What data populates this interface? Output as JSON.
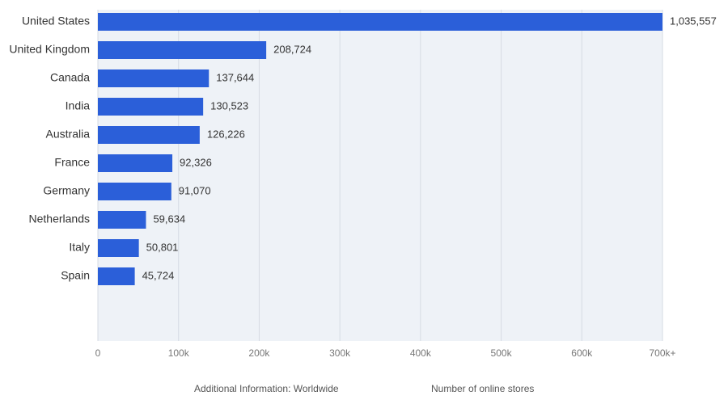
{
  "chart_data": {
    "type": "bar",
    "orientation": "horizontal",
    "categories": [
      "United States",
      "United Kingdom",
      "Canada",
      "India",
      "Australia",
      "France",
      "Germany",
      "Netherlands",
      "Italy",
      "Spain"
    ],
    "values": [
      1035557,
      208724,
      137644,
      130523,
      126226,
      92326,
      91070,
      59634,
      50801,
      45724
    ],
    "value_labels": [
      "1,035,557",
      "208,724",
      "137,644",
      "130,523",
      "126,226",
      "92,326",
      "91,070",
      "59,634",
      "50,801",
      "45,724"
    ],
    "xlim": [
      0,
      700000
    ],
    "x_ticks": [
      0,
      100000,
      200000,
      300000,
      400000,
      500000,
      600000,
      700000
    ],
    "x_tick_labels": [
      "0",
      "100k",
      "200k",
      "300k",
      "400k",
      "500k",
      "600k",
      "700k+"
    ],
    "grid": true,
    "colors": {
      "bar": "#2b5fd9",
      "plot_bg": "#eef2f7",
      "grid": "#d6dbe3"
    }
  },
  "footer": {
    "additional_info": "Additional Information: Worldwide",
    "metric": "Number of online stores"
  }
}
